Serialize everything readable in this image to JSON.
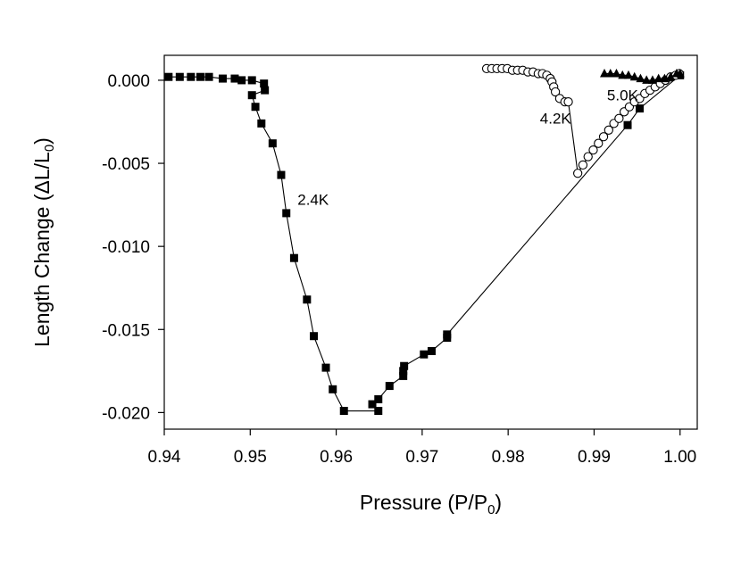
{
  "chart_data": {
    "type": "line",
    "title": "",
    "xlabel": "Pressure (P/P0)",
    "ylabel": "Length Change (ΔL/L0)",
    "xlim": [
      0.94,
      1.002
    ],
    "ylim": [
      -0.021,
      0.0015
    ],
    "xticks": [
      "0.94",
      "0.95",
      "0.96",
      "0.97",
      "0.98",
      "0.99",
      "1.00"
    ],
    "yticks": [
      "0.000",
      "-0.005",
      "-0.010",
      "-0.015",
      "-0.020"
    ],
    "grid": false,
    "series": [
      {
        "name": "2.4K",
        "marker": "filled-square",
        "label_anchor": {
          "x": 0.9555,
          "y": -0.0075
        },
        "x": [
          0.9405,
          0.9418,
          0.9431,
          0.9442,
          0.9452,
          0.9468,
          0.9482,
          0.949,
          0.9502,
          0.9516,
          0.9517,
          0.9502,
          0.9506,
          0.9513,
          0.9526,
          0.9536,
          0.9542,
          0.9551,
          0.9566,
          0.9574,
          0.9588,
          0.9596,
          0.9609,
          0.9649,
          0.9642,
          0.9649,
          0.9662,
          0.9678,
          0.9678,
          0.9679,
          0.9702,
          0.9711,
          0.9729,
          0.9729,
          0.9939,
          0.9953,
          1.0
        ],
        "y": [
          0.0002,
          0.0002,
          0.0002,
          0.0002,
          0.0002,
          0.0001,
          0.0001,
          0.0,
          0.0,
          -0.0002,
          -0.0006,
          -0.0009,
          -0.0016,
          -0.0026,
          -0.0038,
          -0.0057,
          -0.008,
          -0.0107,
          -0.0132,
          -0.0154,
          -0.0173,
          -0.0186,
          -0.0199,
          -0.0199,
          -0.0195,
          -0.0192,
          -0.0184,
          -0.0178,
          -0.0175,
          -0.0172,
          -0.0165,
          -0.0163,
          -0.0155,
          -0.0153,
          -0.0027,
          -0.0017,
          0.0003
        ]
      },
      {
        "name": "4.2K",
        "marker": "open-circle",
        "label_anchor": {
          "x": 0.9837,
          "y": -0.0026
        },
        "x": [
          0.9775,
          0.9781,
          0.9787,
          0.9793,
          0.9799,
          0.9805,
          0.9811,
          0.9817,
          0.9823,
          0.9829,
          0.9835,
          0.984,
          0.9845,
          0.9849,
          0.9851,
          0.9853,
          0.9855,
          0.986,
          0.9866,
          0.987,
          0.9881,
          0.9887,
          0.9893,
          0.9899,
          0.9905,
          0.9911,
          0.9917,
          0.9923,
          0.9929,
          0.9935,
          0.9941,
          0.9947,
          0.9953,
          0.9959,
          0.9965,
          0.9971,
          0.9977,
          0.9983,
          0.9989,
          0.9995,
          0.9999
        ],
        "y": [
          0.0007,
          0.0007,
          0.0007,
          0.0007,
          0.0007,
          0.0006,
          0.0006,
          0.0006,
          0.0005,
          0.0005,
          0.0004,
          0.0004,
          0.0003,
          0.0001,
          -0.0001,
          -0.0004,
          -0.0007,
          -0.0011,
          -0.0013,
          -0.0013,
          -0.0056,
          -0.0051,
          -0.0046,
          -0.0042,
          -0.0038,
          -0.0034,
          -0.003,
          -0.0026,
          -0.0023,
          -0.0019,
          -0.0016,
          -0.0013,
          -0.0011,
          -0.0008,
          -0.0006,
          -0.0004,
          -0.0002,
          0.0,
          0.0002,
          0.0003,
          0.0004
        ]
      },
      {
        "name": "5.0K",
        "marker": "filled-triangle",
        "label_anchor": {
          "x": 0.9915,
          "y": -0.0012
        },
        "x": [
          0.9912,
          0.9919,
          0.9926,
          0.9933,
          0.994,
          0.9947,
          0.9954,
          0.9961,
          0.9968,
          0.9975,
          0.9982,
          0.9989,
          0.9996,
          1.0
        ],
        "y": [
          0.0004,
          0.0004,
          0.0004,
          0.0003,
          0.0003,
          0.0002,
          0.0001,
          0.0,
          0.0,
          0.0001,
          0.0001,
          0.0002,
          0.0004,
          0.0004
        ]
      }
    ]
  }
}
